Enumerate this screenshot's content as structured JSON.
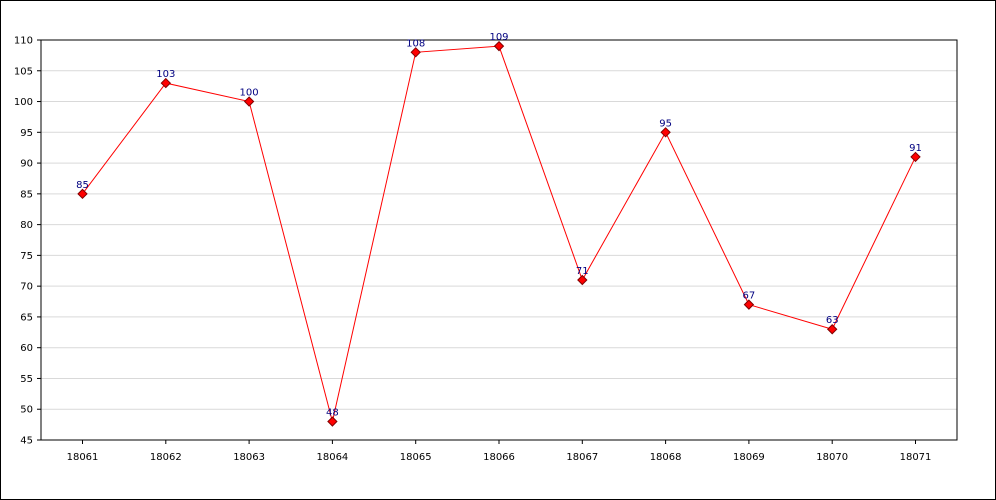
{
  "colors": {
    "line": "#ff0000",
    "marker_fill": "#ff0000",
    "marker_stroke": "#800000",
    "label": "#000080",
    "grid": "#d9d9d9",
    "axis": "#000000"
  },
  "chart_data": {
    "type": "line",
    "title": "",
    "xlabel": "",
    "ylabel": "",
    "categories": [
      "18061",
      "18062",
      "18063",
      "18064",
      "18065",
      "18066",
      "18067",
      "18068",
      "18069",
      "18070",
      "18071"
    ],
    "series": [
      {
        "values": [
          85,
          103,
          100,
          48,
          108,
          109,
          71,
          95,
          67,
          63,
          91
        ]
      }
    ],
    "ylim": [
      45,
      110
    ],
    "ytick_step": 5,
    "grid": "horizontal",
    "marker": "diamond",
    "data_labels": true,
    "legend": "none"
  }
}
